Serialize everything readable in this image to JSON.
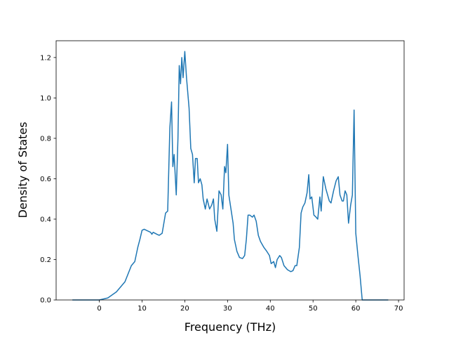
{
  "chart_data": {
    "type": "line",
    "xlabel": "Frequency (THz)",
    "ylabel": "Density of States",
    "xlim": [
      -10.1,
      71.3
    ],
    "ylim": [
      0,
      1.283
    ],
    "xticks": [
      0,
      10,
      20,
      30,
      40,
      50,
      60,
      70
    ],
    "yticks": [
      {
        "value": 0,
        "label": "0.0"
      },
      0.2,
      0.4,
      0.6,
      0.8,
      {
        "value": 1,
        "label": "1.0"
      },
      1.2
    ],
    "series": [
      {
        "color": "#1f77b4",
        "x": [
          -6.3,
          0,
          2,
          4,
          6,
          7.5,
          8.3,
          9,
          9.5,
          10,
          10.5,
          11,
          12,
          12.3,
          12.6,
          13.5,
          14,
          14.7,
          15.5,
          16,
          16.5,
          16.9,
          17.2,
          17.5,
          18,
          18.4,
          18.7,
          19,
          19.3,
          19.6,
          20,
          20.4,
          21,
          21.4,
          21.8,
          22.2,
          22.5,
          22.9,
          23.2,
          23.6,
          24,
          24.3,
          24.8,
          25.2,
          25.8,
          26.3,
          26.7,
          27,
          27.5,
          28,
          28.5,
          28.9,
          29.3,
          29.6,
          30,
          30.3,
          30.8,
          31.3,
          31.6,
          32.2,
          32.8,
          33.5,
          34,
          34.4,
          34.8,
          35.2,
          35.8,
          36.2,
          36.7,
          37.2,
          37.7,
          38.5,
          39.2,
          39.8,
          40.2,
          40.8,
          41.2,
          41.6,
          42.2,
          42.6,
          43.2,
          44,
          44.8,
          45.3,
          45.8,
          46.2,
          46.8,
          47.2,
          47.6,
          48.1,
          48.6,
          49,
          49.3,
          49.7,
          50.2,
          50.7,
          51.1,
          51.6,
          51.9,
          52.4,
          53,
          53.4,
          53.8,
          54.2,
          54.8,
          55.4,
          55.9,
          56.3,
          56.8,
          57.1,
          57.5,
          57.9,
          58.3,
          58.8,
          59.2,
          59.6,
          60,
          60.5,
          61,
          61.5,
          67.6
        ],
        "values": [
          0,
          0,
          0.01,
          0.04,
          0.09,
          0.17,
          0.19,
          0.26,
          0.3,
          0.345,
          0.35,
          0.345,
          0.335,
          0.325,
          0.335,
          0.325,
          0.32,
          0.33,
          0.43,
          0.44,
          0.85,
          0.98,
          0.66,
          0.72,
          0.52,
          0.8,
          1.16,
          1.07,
          1.2,
          1.1,
          1.23,
          1.1,
          0.95,
          0.75,
          0.72,
          0.58,
          0.7,
          0.7,
          0.58,
          0.6,
          0.57,
          0.5,
          0.45,
          0.5,
          0.45,
          0.47,
          0.5,
          0.4,
          0.34,
          0.54,
          0.52,
          0.45,
          0.66,
          0.63,
          0.77,
          0.52,
          0.45,
          0.38,
          0.3,
          0.24,
          0.21,
          0.205,
          0.22,
          0.3,
          0.42,
          0.42,
          0.41,
          0.42,
          0.39,
          0.32,
          0.29,
          0.26,
          0.24,
          0.22,
          0.18,
          0.19,
          0.16,
          0.2,
          0.22,
          0.21,
          0.17,
          0.15,
          0.14,
          0.145,
          0.17,
          0.17,
          0.26,
          0.43,
          0.46,
          0.48,
          0.53,
          0.62,
          0.5,
          0.51,
          0.42,
          0.41,
          0.4,
          0.51,
          0.44,
          0.61,
          0.55,
          0.52,
          0.49,
          0.48,
          0.54,
          0.59,
          0.61,
          0.52,
          0.49,
          0.49,
          0.54,
          0.52,
          0.38,
          0.47,
          0.52,
          0.94,
          0.33,
          0.22,
          0.12,
          0,
          0
        ]
      }
    ]
  }
}
